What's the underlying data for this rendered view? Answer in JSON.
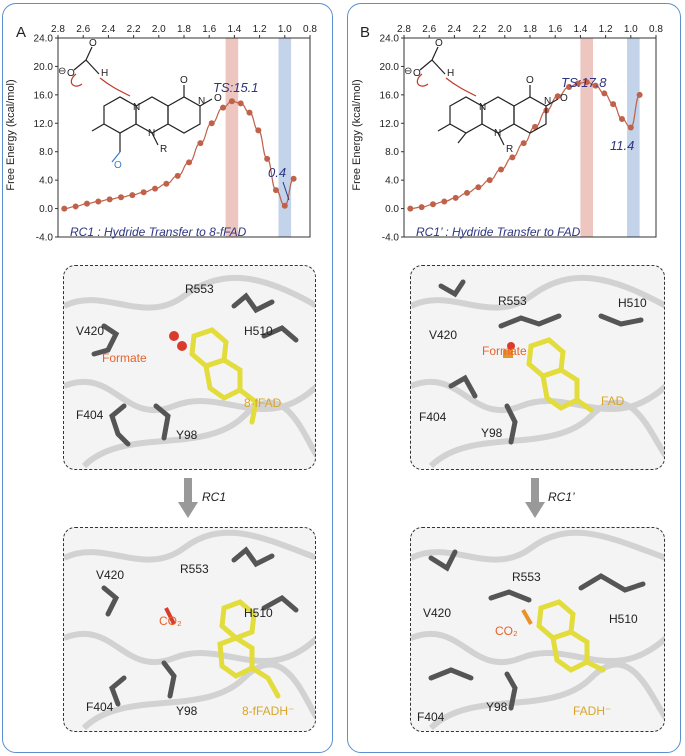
{
  "panels": [
    {
      "letter": "A",
      "ts_label": "TS:15.1",
      "min_label": "0.4",
      "caption": "RC1 : Hydride Transfer to 8-fFAD",
      "arrow_label": "RC1",
      "top_structure": {
        "labels": {
          "r553": "R553",
          "v420": "V420",
          "h510": "H510",
          "formate": "Formate",
          "f404": "F404",
          "y98": "Y98",
          "cofactor": "8-fFAD"
        }
      },
      "bottom_structure": {
        "labels": {
          "r553": "R553",
          "v420": "V420",
          "h510": "H510",
          "co2": "CO₂",
          "f404": "F404",
          "y98": "Y98",
          "cofactor": "8-fFADH⁻"
        }
      }
    },
    {
      "letter": "B",
      "ts_label": "TS:17.8",
      "min_label": "11.4",
      "caption": "RC1’ : Hydride Transfer to FAD",
      "arrow_label": "RC1’",
      "top_structure": {
        "labels": {
          "r553": "R553",
          "v420": "V420",
          "h510": "H510",
          "formate": "Formate",
          "f404": "F404",
          "y98": "Y98",
          "cofactor": "FAD"
        }
      },
      "bottom_structure": {
        "labels": {
          "r553": "R553",
          "v420": "V420",
          "h510": "H510",
          "co2": "CO₂",
          "f404": "F404",
          "y98": "Y98",
          "cofactor": "FADH⁻"
        }
      }
    }
  ],
  "molecule_labels": {
    "o": "O",
    "h": "H",
    "n": "N",
    "r": "R",
    "minus": "⊖"
  },
  "chart_data": [
    {
      "type": "line",
      "ylabel": "Free Energy (kcal/mol)",
      "xlim": [
        2.8,
        0.8
      ],
      "ylim": [
        -4.0,
        24.0
      ],
      "x_ticks": [
        "2.8",
        "2.6",
        "2.4",
        "2.2",
        "2.0",
        "1.8",
        "1.6",
        "1.4",
        "1.2",
        "1.0",
        "0.8"
      ],
      "y_ticks": [
        "-4.0",
        "0.0",
        "4.0",
        "8.0",
        "12.0",
        "16.0",
        "20.0",
        "24.0"
      ],
      "ts_band": [
        1.37,
        1.47
      ],
      "min_band": [
        1.05,
        0.95
      ],
      "line_color": "#c0624a",
      "series": [
        {
          "x": [
            2.75,
            2.66,
            2.57,
            2.48,
            2.39,
            2.3,
            2.21,
            2.12,
            2.03,
            1.94,
            1.85,
            1.76,
            1.67,
            1.58,
            1.49,
            1.42,
            1.35,
            1.28,
            1.21,
            1.14,
            1.07,
            1.0,
            0.93
          ],
          "y": [
            0.0,
            0.3,
            0.7,
            1.0,
            1.3,
            1.6,
            1.9,
            2.3,
            2.8,
            3.5,
            4.6,
            6.5,
            9.2,
            12.0,
            14.2,
            15.1,
            14.8,
            13.5,
            11.0,
            7.0,
            2.6,
            0.4,
            4.2
          ]
        }
      ]
    },
    {
      "type": "line",
      "ylabel": "Free Energy (kcal/mol)",
      "xlim": [
        2.8,
        0.8
      ],
      "ylim": [
        -4.0,
        24.0
      ],
      "x_ticks": [
        "2.8",
        "2.6",
        "2.4",
        "2.2",
        "2.0",
        "1.8",
        "1.6",
        "1.4",
        "1.2",
        "1.0",
        "0.8"
      ],
      "y_ticks": [
        "-4.0",
        "0.0",
        "4.0",
        "8.0",
        "12.0",
        "16.0",
        "20.0",
        "24.0"
      ],
      "ts_band": [
        1.3,
        1.4
      ],
      "min_band": [
        1.03,
        0.93
      ],
      "line_color": "#c0624a",
      "series": [
        {
          "x": [
            2.75,
            2.66,
            2.57,
            2.48,
            2.39,
            2.3,
            2.21,
            2.12,
            2.03,
            1.94,
            1.85,
            1.76,
            1.67,
            1.58,
            1.49,
            1.42,
            1.35,
            1.28,
            1.21,
            1.14,
            1.07,
            1.0,
            0.93
          ],
          "y": [
            0.0,
            0.2,
            0.6,
            1.0,
            1.5,
            2.2,
            3.0,
            4.0,
            5.5,
            7.2,
            9.2,
            11.5,
            13.8,
            15.8,
            17.1,
            17.6,
            17.8,
            17.3,
            16.2,
            14.7,
            12.6,
            11.4,
            16.0
          ]
        }
      ]
    }
  ]
}
